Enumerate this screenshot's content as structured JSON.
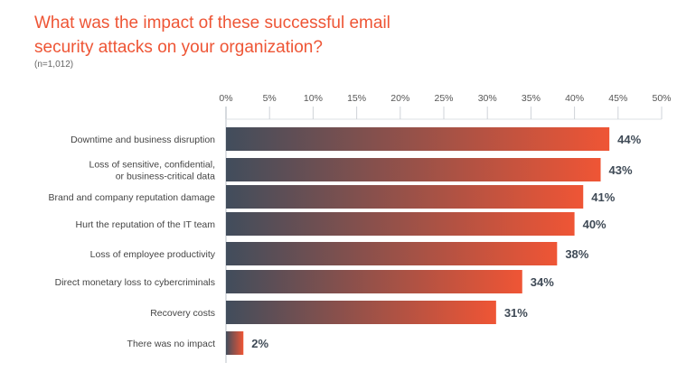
{
  "chart_data": {
    "type": "bar",
    "orientation": "horizontal",
    "title": "What was the impact of these successful email security attacks on your organization?",
    "subtitle": "(n=1,012)",
    "categories": [
      [
        "Downtime and business disruption"
      ],
      [
        "Loss of sensitive, confidential,",
        "or business-critical data"
      ],
      [
        "Brand and company reputation damage"
      ],
      [
        "Hurt the reputation of the IT team"
      ],
      [
        "Loss of employee productivity"
      ],
      [
        "Direct monetary loss to cybercriminals"
      ],
      [
        "Recovery costs"
      ],
      [
        "There was no impact"
      ]
    ],
    "values": [
      44,
      43,
      41,
      40,
      38,
      34,
      31,
      2
    ],
    "value_labels": [
      "44%",
      "43%",
      "41%",
      "40%",
      "38%",
      "34%",
      "31%",
      "2%"
    ],
    "xlim": [
      0,
      50
    ],
    "xticks": [
      "0%",
      "5%",
      "10%",
      "15%",
      "20%",
      "25%",
      "30%",
      "35%",
      "40%",
      "45%",
      "50%"
    ],
    "axis_position": "top",
    "grid": false,
    "colors": {
      "gradient_start": "#414d5c",
      "gradient_end": "#ef5535",
      "title": "#ee5535"
    }
  }
}
